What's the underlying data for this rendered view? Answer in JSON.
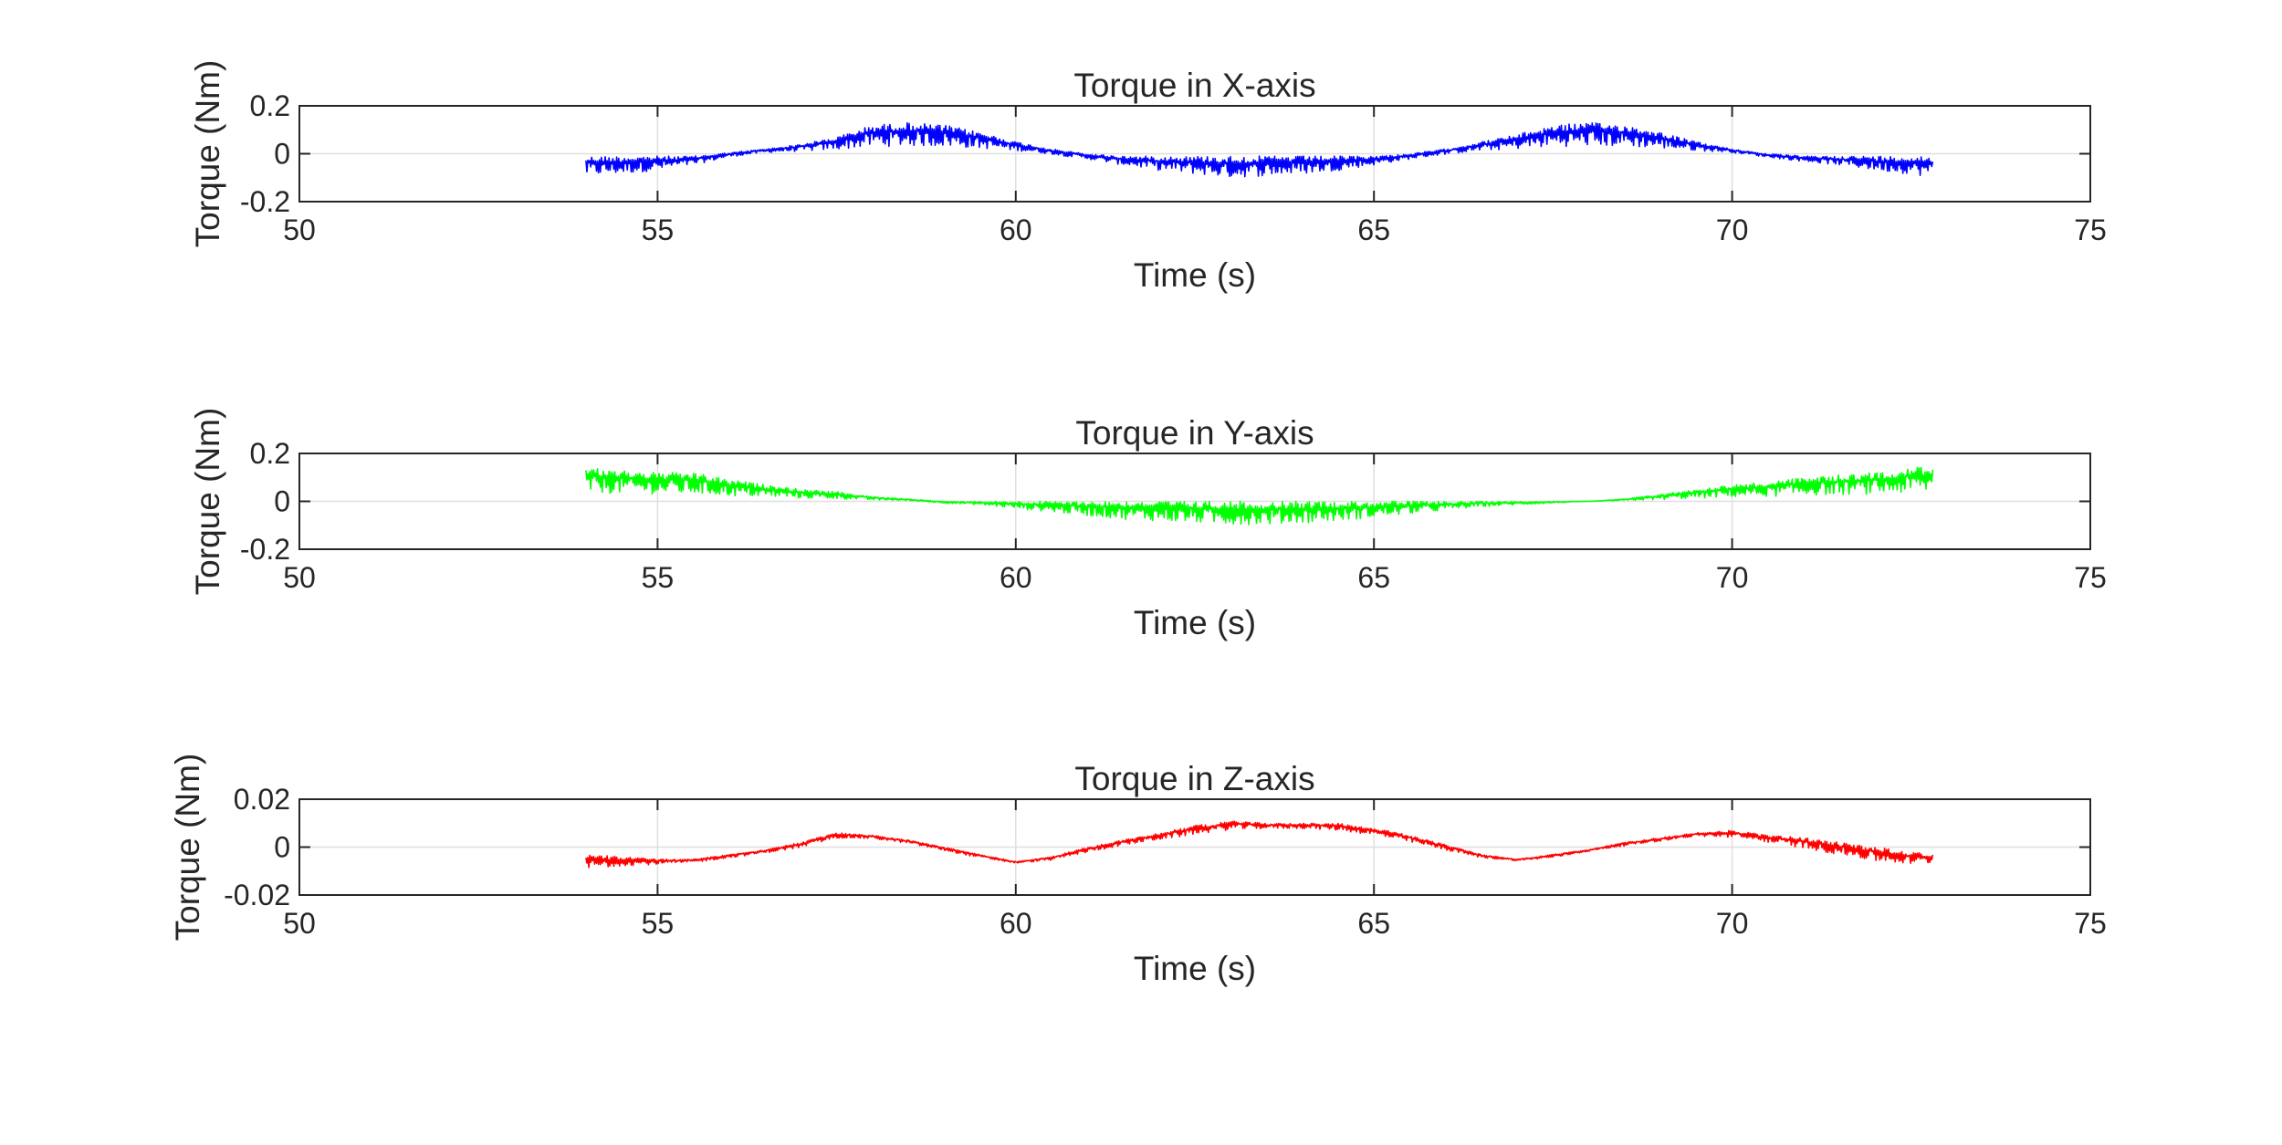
{
  "chart_data": [
    {
      "type": "line",
      "title": "Torque in X-axis",
      "xlabel": "Time (s)",
      "ylabel": "Torque (Nm)",
      "xlim": [
        50,
        75
      ],
      "ylim": [
        -0.2,
        0.2
      ],
      "xticks": [
        50,
        55,
        60,
        65,
        70,
        75
      ],
      "yticks": [
        -0.2,
        0,
        0.2
      ],
      "xtick_labels": [
        "50",
        "55",
        "60",
        "65",
        "70",
        "75"
      ],
      "ytick_labels": [
        "-0.2",
        "0",
        "0.2"
      ],
      "grid": true,
      "color": "#0000ff",
      "series": [
        {
          "x": [
            54.0,
            54.5,
            55.0,
            55.5,
            56.0,
            56.5,
            57.0,
            57.5,
            58.0,
            58.5,
            59.0,
            59.5,
            60.0,
            60.5,
            61.0,
            61.5,
            62.0,
            62.5,
            63.0,
            63.5,
            64.0,
            64.5,
            65.0,
            65.5,
            66.0,
            66.5,
            67.0,
            67.5,
            68.0,
            68.5,
            69.0,
            69.5,
            70.0,
            70.5,
            71.0,
            71.5,
            72.0,
            72.5,
            72.8
          ],
          "upper": [
            -0.01,
            -0.01,
            -0.01,
            -0.01,
            0.005,
            0.02,
            0.04,
            0.07,
            0.12,
            0.13,
            0.12,
            0.09,
            0.05,
            0.02,
            0.0,
            -0.01,
            -0.01,
            -0.01,
            -0.01,
            -0.01,
            -0.01,
            -0.01,
            -0.01,
            0.0,
            0.02,
            0.05,
            0.08,
            0.12,
            0.13,
            0.12,
            0.09,
            0.05,
            0.02,
            0.0,
            -0.01,
            -0.01,
            -0.01,
            -0.01,
            -0.01
          ],
          "lower": [
            -0.12,
            -0.11,
            -0.09,
            -0.06,
            -0.02,
            0.0,
            0.0,
            0.0,
            0.0,
            0.0,
            0.0,
            0.0,
            0.0,
            -0.01,
            -0.03,
            -0.06,
            -0.09,
            -0.11,
            -0.13,
            -0.12,
            -0.11,
            -0.09,
            -0.06,
            -0.03,
            -0.01,
            0.0,
            0.0,
            0.0,
            0.0,
            0.0,
            0.0,
            0.0,
            0.0,
            -0.02,
            -0.04,
            -0.06,
            -0.09,
            -0.11,
            -0.13
          ]
        }
      ]
    },
    {
      "type": "line",
      "title": "Torque in Y-axis",
      "xlabel": "Time (s)",
      "ylabel": "Torque (Nm)",
      "xlim": [
        50,
        75
      ],
      "ylim": [
        -0.2,
        0.2
      ],
      "xticks": [
        50,
        55,
        60,
        65,
        70,
        75
      ],
      "yticks": [
        -0.2,
        0,
        0.2
      ],
      "xtick_labels": [
        "50",
        "55",
        "60",
        "65",
        "70",
        "75"
      ],
      "ytick_labels": [
        "-0.2",
        "0",
        "0.2"
      ],
      "grid": true,
      "color": "#00ff00",
      "series": [
        {
          "x": [
            54.0,
            54.5,
            55.0,
            55.5,
            56.0,
            56.5,
            57.0,
            57.5,
            58.0,
            58.5,
            59.0,
            59.5,
            60.0,
            60.5,
            61.0,
            61.5,
            62.0,
            62.5,
            63.0,
            63.5,
            64.0,
            64.5,
            65.0,
            65.5,
            66.0,
            66.5,
            67.0,
            67.5,
            68.0,
            68.5,
            69.0,
            69.5,
            70.0,
            70.5,
            71.0,
            71.5,
            72.0,
            72.5,
            72.8
          ],
          "upper": [
            0.14,
            0.13,
            0.12,
            0.12,
            0.09,
            0.07,
            0.05,
            0.04,
            0.02,
            0.01,
            0.0,
            0.0,
            0.0,
            0.0,
            0.0,
            0.0,
            0.0,
            0.0,
            0.0,
            0.0,
            0.0,
            0.0,
            0.0,
            0.0,
            0.0,
            0.0,
            0.0,
            0.0,
            0.0,
            0.01,
            0.03,
            0.05,
            0.07,
            0.08,
            0.1,
            0.11,
            0.12,
            0.14,
            0.15
          ],
          "lower": [
            0.0,
            0.0,
            0.0,
            0.0,
            0.0,
            0.0,
            0.0,
            0.0,
            0.0,
            0.0,
            -0.01,
            -0.02,
            -0.04,
            -0.06,
            -0.08,
            -0.1,
            -0.11,
            -0.12,
            -0.13,
            -0.13,
            -0.12,
            -0.11,
            -0.09,
            -0.07,
            -0.05,
            -0.03,
            -0.02,
            -0.01,
            0.0,
            0.0,
            0.0,
            0.0,
            0.0,
            0.0,
            0.0,
            0.0,
            0.0,
            0.0,
            0.0
          ]
        }
      ]
    },
    {
      "type": "line",
      "title": "Torque in Z-axis",
      "xlabel": "Time (s)",
      "ylabel": "Torque (Nm)",
      "xlim": [
        50,
        75
      ],
      "ylim": [
        -0.02,
        0.02
      ],
      "xticks": [
        50,
        55,
        60,
        65,
        70,
        75
      ],
      "yticks": [
        -0.02,
        0,
        0.02
      ],
      "xtick_labels": [
        "50",
        "55",
        "60",
        "65",
        "70",
        "75"
      ],
      "ytick_labels": [
        "-0.02",
        "0",
        "0.02"
      ],
      "grid": true,
      "color": "#ff0000",
      "series": [
        {
          "x": [
            54.0,
            54.5,
            55.0,
            55.5,
            56.0,
            56.5,
            57.0,
            57.5,
            58.0,
            58.5,
            59.0,
            59.5,
            60.0,
            60.5,
            61.0,
            61.5,
            62.0,
            62.5,
            63.0,
            63.5,
            64.0,
            64.5,
            65.0,
            65.5,
            66.0,
            66.5,
            67.0,
            67.5,
            68.0,
            68.5,
            69.0,
            69.5,
            70.0,
            70.5,
            71.0,
            71.5,
            72.0,
            72.5,
            72.8
          ],
          "upper": [
            -0.003,
            -0.004,
            -0.005,
            -0.005,
            -0.003,
            -0.001,
            0.002,
            0.006,
            0.005,
            0.003,
            0.0,
            -0.003,
            -0.006,
            -0.004,
            0.0,
            0.003,
            0.006,
            0.009,
            0.011,
            0.01,
            0.01,
            0.01,
            0.008,
            0.005,
            0.001,
            -0.003,
            -0.005,
            -0.003,
            -0.001,
            0.002,
            0.004,
            0.006,
            0.007,
            0.005,
            0.004,
            0.002,
            0.0,
            -0.002,
            -0.003
          ],
          "lower": [
            -0.012,
            -0.009,
            -0.008,
            -0.007,
            -0.005,
            -0.003,
            -0.001,
            0.003,
            0.003,
            0.001,
            -0.002,
            -0.005,
            -0.007,
            -0.006,
            -0.003,
            0.0,
            0.002,
            0.004,
            0.006,
            0.007,
            0.007,
            0.006,
            0.004,
            0.001,
            -0.002,
            -0.005,
            -0.006,
            -0.005,
            -0.002,
            0.0,
            0.002,
            0.004,
            0.003,
            0.001,
            -0.002,
            -0.005,
            -0.008,
            -0.009,
            -0.008
          ]
        }
      ]
    }
  ]
}
